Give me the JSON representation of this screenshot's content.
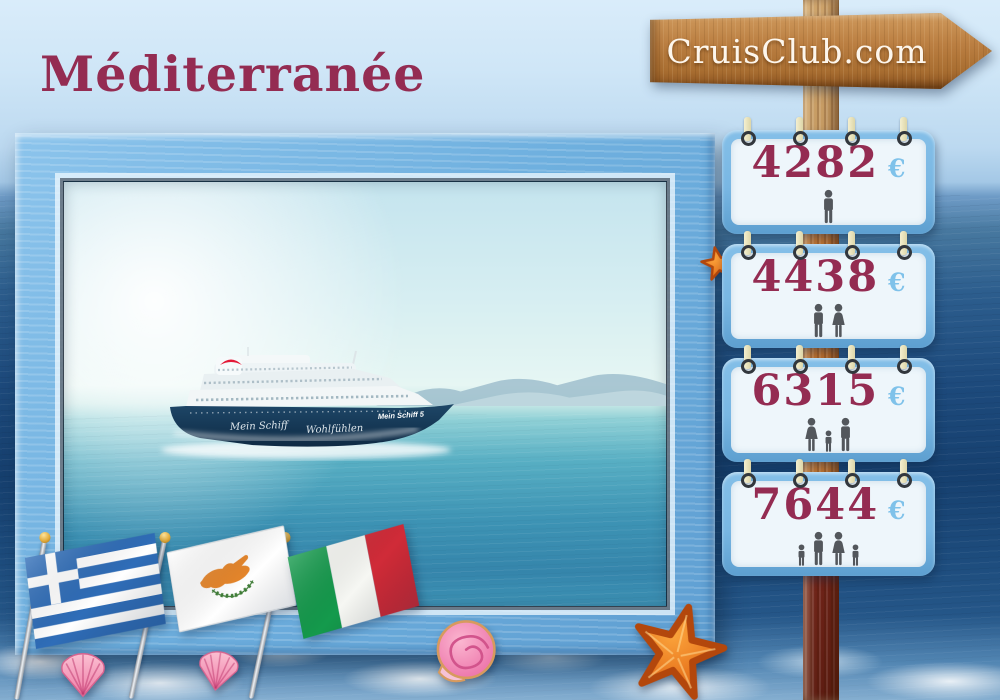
{
  "page": {
    "title": "Méditerranée"
  },
  "sign": {
    "label": "CruisClub.com"
  },
  "pricing": {
    "currency": "€",
    "tags": [
      {
        "price": "4282",
        "travelers": [
          "man"
        ]
      },
      {
        "price": "4438",
        "travelers": [
          "man",
          "woman"
        ]
      },
      {
        "price": "6315",
        "travelers": [
          "woman",
          "child",
          "man"
        ]
      },
      {
        "price": "7644",
        "travelers": [
          "child",
          "man",
          "woman",
          "child"
        ]
      }
    ]
  },
  "ship": {
    "bow_label": "Mein Schiff 5",
    "hull_script_left": "Mein Schiff",
    "hull_script_right": "Wohlfühlen"
  },
  "flags": {
    "items": [
      "greece-flag-icon",
      "cyprus-flag-icon",
      "italy-flag-icon"
    ]
  },
  "icons": {
    "decor": [
      "scallop-shell-icon",
      "scallop-shell-icon",
      "spiral-shell-icon",
      "starfish-icon",
      "small-starfish-icon"
    ],
    "travelers": [
      "man-icon",
      "woman-icon",
      "child-icon"
    ]
  },
  "colors": {
    "accent_maroon": "#942c52",
    "euro_blue": "#7fc2ea",
    "tag_border": "#79b7e3",
    "tag_card": "#eef6fb",
    "frame_blue": "#6fb0df",
    "wood_brown": "#b0763d",
    "sea_deep": "#1d4a7c",
    "sky_light": "#d3e8f7"
  }
}
